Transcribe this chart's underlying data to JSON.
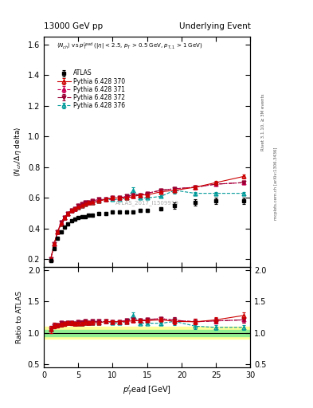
{
  "title_left": "13000 GeV pp",
  "title_right": "Underlying Event",
  "right_label1": "Rivet 3.1.10, ≥ 3M events",
  "right_label2": "mcplots.cern.ch [arXiv:1306.3436]",
  "watermark": "ATLAS_2017_I1509919",
  "ylabel_main": "⟨N_{ch} / Δη delta⟩",
  "ylabel_ratio": "Ratio to ATLAS",
  "xlabel": "p_{T}^{l}ead [GeV]",
  "ylim_main": [
    0.15,
    1.65
  ],
  "ylim_ratio": [
    0.45,
    2.05
  ],
  "yticks_main": [
    0.2,
    0.4,
    0.6,
    0.8,
    1.0,
    1.2,
    1.4,
    1.6
  ],
  "yticks_ratio": [
    0.5,
    1.0,
    1.5,
    2.0
  ],
  "xlim": [
    0,
    30
  ],
  "xticks": [
    0,
    5,
    10,
    15,
    20,
    25,
    30
  ],
  "atlas_x": [
    1.0,
    1.5,
    2.0,
    2.5,
    3.0,
    3.5,
    4.0,
    4.5,
    5.0,
    5.5,
    6.0,
    6.5,
    7.0,
    8.0,
    9.0,
    10.0,
    11.0,
    12.0,
    13.0,
    14.0,
    15.0,
    17.0,
    19.0,
    22.0,
    25.0,
    29.0
  ],
  "atlas_y": [
    0.19,
    0.27,
    0.34,
    0.38,
    0.41,
    0.43,
    0.45,
    0.46,
    0.47,
    0.48,
    0.48,
    0.49,
    0.49,
    0.5,
    0.5,
    0.51,
    0.51,
    0.51,
    0.51,
    0.52,
    0.52,
    0.53,
    0.55,
    0.57,
    0.58,
    0.58
  ],
  "atlas_yerr": [
    0.01,
    0.01,
    0.01,
    0.01,
    0.01,
    0.01,
    0.01,
    0.01,
    0.01,
    0.01,
    0.01,
    0.01,
    0.01,
    0.01,
    0.01,
    0.01,
    0.01,
    0.01,
    0.01,
    0.01,
    0.01,
    0.01,
    0.02,
    0.02,
    0.02,
    0.02
  ],
  "p370_x": [
    1.0,
    1.5,
    2.0,
    2.5,
    3.0,
    3.5,
    4.0,
    4.5,
    5.0,
    5.5,
    6.0,
    6.5,
    7.0,
    8.0,
    9.0,
    10.0,
    11.0,
    12.0,
    13.0,
    14.0,
    15.0,
    17.0,
    19.0,
    22.0,
    25.0,
    29.0
  ],
  "p370_y": [
    0.2,
    0.3,
    0.38,
    0.43,
    0.47,
    0.5,
    0.52,
    0.53,
    0.54,
    0.55,
    0.56,
    0.57,
    0.57,
    0.58,
    0.59,
    0.6,
    0.6,
    0.6,
    0.61,
    0.62,
    0.62,
    0.64,
    0.65,
    0.67,
    0.7,
    0.74
  ],
  "p370_yerr": [
    0.005,
    0.005,
    0.005,
    0.005,
    0.005,
    0.005,
    0.005,
    0.005,
    0.005,
    0.005,
    0.005,
    0.005,
    0.005,
    0.005,
    0.005,
    0.005,
    0.005,
    0.005,
    0.005,
    0.005,
    0.005,
    0.005,
    0.01,
    0.01,
    0.01,
    0.015
  ],
  "p371_x": [
    1.0,
    1.5,
    2.0,
    2.5,
    3.0,
    3.5,
    4.0,
    4.5,
    5.0,
    5.5,
    6.0,
    6.5,
    7.0,
    8.0,
    9.0,
    10.0,
    11.0,
    12.0,
    13.0,
    14.0,
    15.0,
    17.0,
    19.0,
    22.0,
    25.0,
    29.0
  ],
  "p371_y": [
    0.2,
    0.3,
    0.38,
    0.44,
    0.47,
    0.5,
    0.52,
    0.53,
    0.55,
    0.56,
    0.57,
    0.57,
    0.58,
    0.59,
    0.59,
    0.6,
    0.6,
    0.61,
    0.61,
    0.62,
    0.63,
    0.65,
    0.66,
    0.67,
    0.69,
    0.7
  ],
  "p371_yerr": [
    0.005,
    0.005,
    0.005,
    0.005,
    0.005,
    0.005,
    0.005,
    0.005,
    0.005,
    0.005,
    0.005,
    0.005,
    0.005,
    0.005,
    0.005,
    0.005,
    0.005,
    0.005,
    0.005,
    0.005,
    0.005,
    0.005,
    0.01,
    0.01,
    0.01,
    0.01
  ],
  "p372_x": [
    1.0,
    1.5,
    2.0,
    2.5,
    3.0,
    3.5,
    4.0,
    4.5,
    5.0,
    5.5,
    6.0,
    6.5,
    7.0,
    8.0,
    9.0,
    10.0,
    11.0,
    12.0,
    13.0,
    14.0,
    15.0,
    17.0,
    19.0,
    22.0,
    25.0,
    29.0
  ],
  "p372_y": [
    0.2,
    0.3,
    0.38,
    0.44,
    0.47,
    0.5,
    0.52,
    0.53,
    0.55,
    0.56,
    0.57,
    0.57,
    0.58,
    0.59,
    0.59,
    0.6,
    0.6,
    0.61,
    0.62,
    0.62,
    0.63,
    0.65,
    0.66,
    0.67,
    0.69,
    0.7
  ],
  "p372_yerr": [
    0.005,
    0.005,
    0.005,
    0.005,
    0.005,
    0.005,
    0.005,
    0.005,
    0.005,
    0.005,
    0.005,
    0.005,
    0.005,
    0.005,
    0.005,
    0.005,
    0.005,
    0.005,
    0.005,
    0.005,
    0.005,
    0.005,
    0.01,
    0.01,
    0.01,
    0.01
  ],
  "p376_x": [
    1.0,
    1.5,
    2.0,
    2.5,
    3.0,
    3.5,
    4.0,
    4.5,
    5.0,
    5.5,
    6.0,
    6.5,
    7.0,
    8.0,
    9.0,
    10.0,
    11.0,
    12.0,
    13.0,
    14.0,
    15.0,
    17.0,
    19.0,
    22.0,
    25.0,
    29.0
  ],
  "p376_y": [
    0.2,
    0.3,
    0.38,
    0.43,
    0.47,
    0.5,
    0.52,
    0.53,
    0.54,
    0.55,
    0.56,
    0.57,
    0.57,
    0.58,
    0.59,
    0.59,
    0.59,
    0.6,
    0.65,
    0.6,
    0.6,
    0.61,
    0.65,
    0.63,
    0.63,
    0.63
  ],
  "p376_yerr": [
    0.005,
    0.005,
    0.005,
    0.005,
    0.005,
    0.005,
    0.005,
    0.005,
    0.005,
    0.005,
    0.005,
    0.005,
    0.005,
    0.005,
    0.005,
    0.005,
    0.005,
    0.005,
    0.02,
    0.005,
    0.005,
    0.005,
    0.02,
    0.01,
    0.01,
    0.01
  ],
  "color_370": "#cc0000",
  "color_371": "#cc0055",
  "color_372": "#990033",
  "color_376": "#009999",
  "band_green": "#90ee90",
  "band_yellow": "#ffff99"
}
